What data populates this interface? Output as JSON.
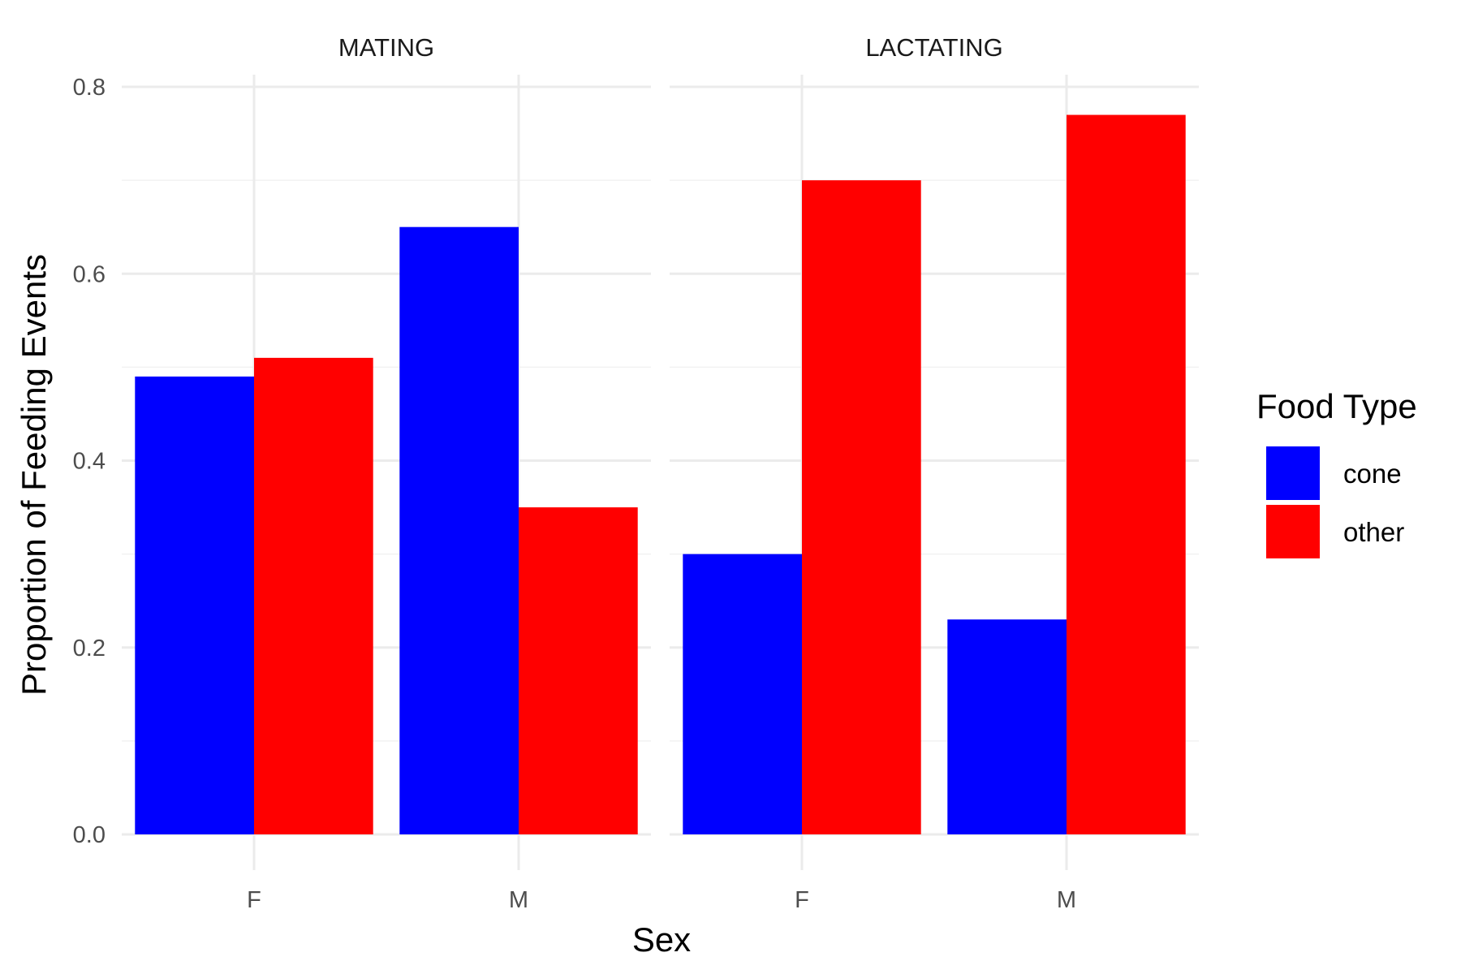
{
  "chart_data": {
    "type": "bar",
    "xlabel": "Sex",
    "ylabel": "Proportion of Feeding Events",
    "ylim": [
      0,
      0.8
    ],
    "yticks": [
      "0.0",
      "0.2",
      "0.4",
      "0.6",
      "0.8"
    ],
    "grid": true,
    "legend": {
      "title": "Food Type",
      "placement": "right",
      "entries": [
        {
          "name": "cone",
          "color": "#0000ff"
        },
        {
          "name": "other",
          "color": "#ff0000"
        }
      ]
    },
    "panels": [
      {
        "title": "MATING",
        "categories": [
          "F",
          "M"
        ],
        "series": [
          {
            "name": "cone",
            "color": "#0000ff",
            "values": [
              0.49,
              0.65
            ]
          },
          {
            "name": "other",
            "color": "#ff0000",
            "values": [
              0.51,
              0.35
            ]
          }
        ]
      },
      {
        "title": "LACTATING",
        "categories": [
          "F",
          "M"
        ],
        "series": [
          {
            "name": "cone",
            "color": "#0000ff",
            "values": [
              0.3,
              0.23
            ]
          },
          {
            "name": "other",
            "color": "#ff0000",
            "values": [
              0.7,
              0.77
            ]
          }
        ]
      }
    ]
  }
}
